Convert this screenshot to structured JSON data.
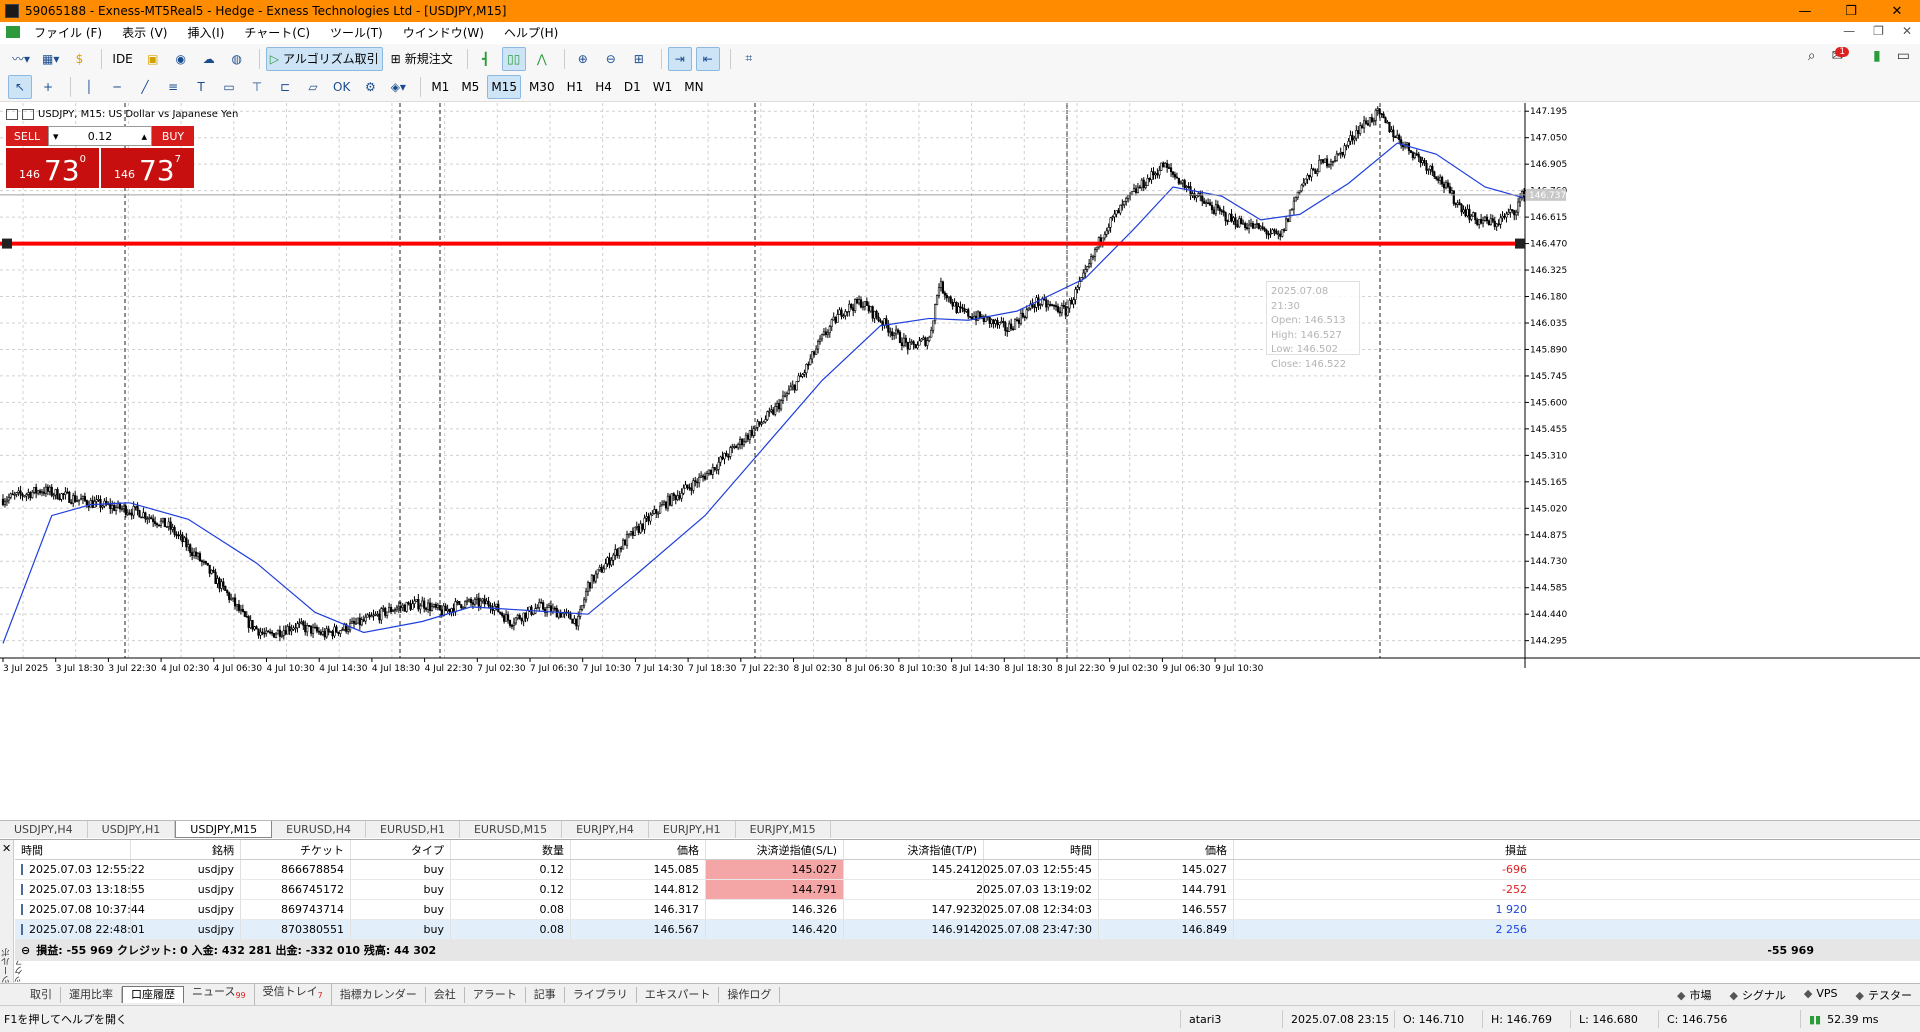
{
  "window": {
    "title": "59065188 - Exness-MT5Real5 - Hedge - Exness Technologies Ltd - [USDJPY,M15]",
    "btn_min": "—",
    "btn_max": "❐",
    "btn_close": "✕"
  },
  "menu": {
    "items": [
      "ファイル (F)",
      "表示 (V)",
      "挿入(I)",
      "チャート(C)",
      "ツール(T)",
      "ウインドウ(W)",
      "ヘルプ(H)"
    ],
    "right": [
      "—",
      "❐",
      "✕"
    ]
  },
  "toolbar1": {
    "ide": "IDE",
    "algo": "アルゴリズム取引",
    "new_order": "新規注文"
  },
  "timeframes": [
    "M1",
    "M5",
    "M15",
    "M30",
    "H1",
    "H4",
    "D1",
    "W1",
    "MN"
  ],
  "active_timeframe": "M15",
  "chart": {
    "header": "USDJPY, M15:  US Dollar vs Japanese Yen",
    "sell_label": "SELL",
    "buy_label": "BUY",
    "volume": "0.12",
    "sell_small": "146",
    "sell_big": "73",
    "sell_sup": "0",
    "buy_small": "146",
    "buy_big": "73",
    "buy_sup": "7",
    "current_price": "146.737",
    "sl_price": "146.470",
    "tooltip": {
      "date": "2025.07.08 21:30",
      "open": "Open: 146.513",
      "high": "High: 146.527",
      "low": "Low: 146.502",
      "close": "Close: 146.522"
    }
  },
  "chart_data": {
    "type": "candlestick",
    "symbol": "USDJPY",
    "timeframe": "M15",
    "y_ticks": [
      "147.195",
      "147.050",
      "146.905",
      "146.760",
      "146.615",
      "146.470",
      "146.325",
      "146.180",
      "146.035",
      "145.890",
      "145.745",
      "145.600",
      "145.455",
      "145.310",
      "145.165",
      "145.020",
      "144.875",
      "144.730",
      "144.585",
      "144.440",
      "144.295"
    ],
    "ylim": [
      144.2,
      147.24
    ],
    "x_ticks": [
      "3 Jul 2025",
      "3 Jul 18:30",
      "3 Jul 22:30",
      "4 Jul 02:30",
      "4 Jul 06:30",
      "4 Jul 10:30",
      "4 Jul 14:30",
      "4 Jul 18:30",
      "4 Jul 22:30",
      "7 Jul 02:30",
      "7 Jul 06:30",
      "7 Jul 10:30",
      "7 Jul 14:30",
      "7 Jul 18:30",
      "7 Jul 22:30",
      "8 Jul 02:30",
      "8 Jul 06:30",
      "8 Jul 10:30",
      "8 Jul 14:30",
      "8 Jul 18:30",
      "8 Jul 22:30",
      "9 Jul 02:30",
      "9 Jul 06:30",
      "9 Jul 10:30"
    ],
    "price_path": [
      [
        0,
        145.07
      ],
      [
        20,
        145.12
      ],
      [
        45,
        145.05
      ],
      [
        70,
        145.0
      ],
      [
        85,
        144.92
      ],
      [
        100,
        144.75
      ],
      [
        115,
        144.55
      ],
      [
        125,
        144.4
      ],
      [
        135,
        144.32
      ],
      [
        150,
        144.38
      ],
      [
        165,
        144.33
      ],
      [
        185,
        144.4
      ],
      [
        200,
        144.47
      ],
      [
        215,
        144.5
      ],
      [
        225,
        144.45
      ],
      [
        235,
        144.5
      ],
      [
        250,
        144.5
      ],
      [
        260,
        144.4
      ],
      [
        275,
        144.48
      ],
      [
        285,
        144.45
      ],
      [
        295,
        144.4
      ],
      [
        300,
        144.6
      ],
      [
        320,
        144.85
      ],
      [
        340,
        145.05
      ],
      [
        360,
        145.2
      ],
      [
        380,
        145.4
      ],
      [
        395,
        145.55
      ],
      [
        410,
        145.75
      ],
      [
        420,
        145.95
      ],
      [
        430,
        146.1
      ],
      [
        440,
        146.15
      ],
      [
        455,
        146.0
      ],
      [
        465,
        145.9
      ],
      [
        475,
        145.95
      ],
      [
        480,
        146.25
      ],
      [
        490,
        146.1
      ],
      [
        505,
        146.05
      ],
      [
        515,
        146.0
      ],
      [
        530,
        146.15
      ],
      [
        545,
        146.1
      ],
      [
        555,
        146.3
      ],
      [
        565,
        146.55
      ],
      [
        580,
        146.75
      ],
      [
        595,
        146.9
      ],
      [
        605,
        146.8
      ],
      [
        615,
        146.7
      ],
      [
        630,
        146.6
      ],
      [
        645,
        146.55
      ],
      [
        655,
        146.5
      ],
      [
        665,
        146.78
      ],
      [
        675,
        146.9
      ],
      [
        685,
        146.95
      ],
      [
        695,
        147.1
      ],
      [
        705,
        147.18
      ],
      [
        715,
        147.05
      ],
      [
        725,
        146.95
      ],
      [
        735,
        146.85
      ],
      [
        745,
        146.7
      ],
      [
        755,
        146.6
      ],
      [
        765,
        146.58
      ],
      [
        775,
        146.65
      ],
      [
        780,
        146.75
      ]
    ],
    "ma_path": [
      [
        0,
        144.28
      ],
      [
        25,
        144.98
      ],
      [
        45,
        145.04
      ],
      [
        65,
        145.05
      ],
      [
        95,
        144.96
      ],
      [
        130,
        144.72
      ],
      [
        160,
        144.45
      ],
      [
        185,
        144.34
      ],
      [
        215,
        144.4
      ],
      [
        240,
        144.48
      ],
      [
        270,
        144.46
      ],
      [
        300,
        144.44
      ],
      [
        325,
        144.66
      ],
      [
        360,
        144.98
      ],
      [
        390,
        145.35
      ],
      [
        420,
        145.72
      ],
      [
        450,
        146.02
      ],
      [
        475,
        146.06
      ],
      [
        495,
        146.05
      ],
      [
        520,
        146.1
      ],
      [
        555,
        146.28
      ],
      [
        580,
        146.55
      ],
      [
        600,
        146.78
      ],
      [
        625,
        146.73
      ],
      [
        645,
        146.6
      ],
      [
        665,
        146.63
      ],
      [
        690,
        146.8
      ],
      [
        715,
        147.02
      ],
      [
        735,
        146.96
      ],
      [
        760,
        146.78
      ],
      [
        780,
        146.72
      ]
    ],
    "horizontal_line": 146.47
  },
  "symbol_tabs": [
    "USDJPY,H4",
    "USDJPY,H1",
    "USDJPY,M15",
    "EURUSD,H4",
    "EURUSD,H1",
    "EURUSD,M15",
    "EURJPY,H4",
    "EURJPY,H1",
    "EURJPY,M15"
  ],
  "active_symbol_tab": "USDJPY,M15",
  "history": {
    "headers": [
      "時間",
      "銘柄",
      "チケット",
      "タイプ",
      "数量",
      "価格",
      "決済逆指値(S/L)",
      "決済指値(T/P)",
      "時間",
      "価格",
      "損益"
    ],
    "rows": [
      [
        "2025.07.03 12:55:22",
        "usdjpy",
        "866678854",
        "buy",
        "0.12",
        "145.085",
        "145.027",
        "145.241",
        "2025.07.03 12:55:45",
        "145.027",
        "-696"
      ],
      [
        "2025.07.03 13:18:55",
        "usdjpy",
        "866745172",
        "buy",
        "0.12",
        "144.812",
        "144.791",
        "",
        "2025.07.03 13:19:02",
        "144.791",
        "-252"
      ],
      [
        "2025.07.08 10:37:44",
        "usdjpy",
        "869743714",
        "buy",
        "0.08",
        "146.317",
        "146.326",
        "147.923",
        "2025.07.08 12:34:03",
        "146.557",
        "1 920"
      ],
      [
        "2025.07.08 22:48:01",
        "usdjpy",
        "870380551",
        "buy",
        "0.08",
        "146.567",
        "146.420",
        "146.914",
        "2025.07.08 23:47:30",
        "146.849",
        "2 256"
      ]
    ],
    "summary": "損益: -55 969  クレジット: 0  入金: 432 281  出金: -332 010  残高: 44 302",
    "summary_total": "-55 969"
  },
  "toolbox_label": "ツールボックス",
  "bottom_tabs": [
    "取引",
    "運用比率",
    "口座履歴",
    "ニュース",
    "受信トレイ",
    "指標カレンダー",
    "会社",
    "アラート",
    "記事",
    "ライブラリ",
    "エキスパート",
    "操作ログ"
  ],
  "bottom_tab_counts": {
    "ニュース": "99",
    "受信トレイ": "7"
  },
  "active_bottom_tab": "口座履歴",
  "bottom_right": [
    "市場",
    "シグナル",
    "VPS",
    "テスター"
  ],
  "status": {
    "help": "F1を押してヘルプを開く",
    "profile": "atari3",
    "datetime": "2025.07.08 23:15",
    "open": "O: 146.710",
    "high": "H: 146.769",
    "low": "L: 146.680",
    "close": "C: 146.756",
    "ping": "52.39 ms"
  },
  "colors": {
    "title_bg": "#ff8c00",
    "sell": "#d61b1b",
    "line_red": "#ff0000",
    "ma": "#1f3fdc"
  }
}
